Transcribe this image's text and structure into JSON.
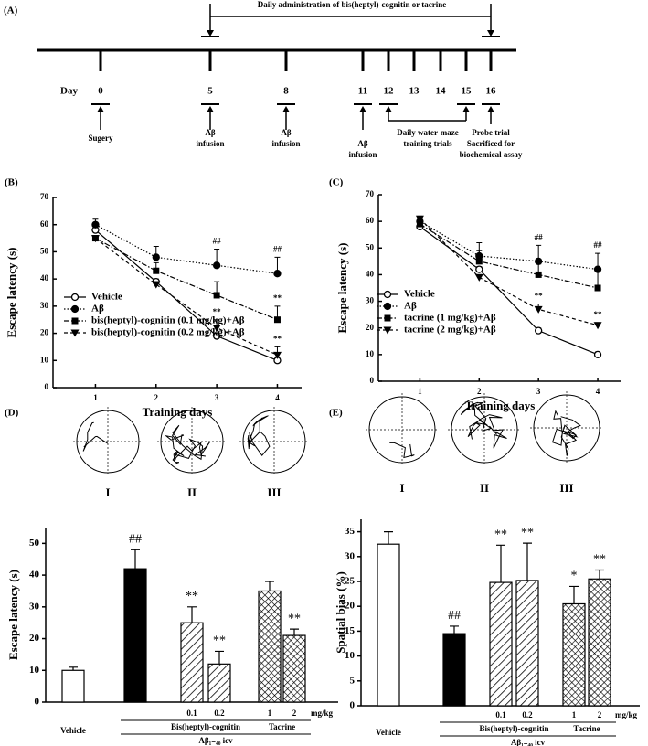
{
  "timeline": {
    "panel": "(A)",
    "admin": "Daily administration of bis(heptyl)-cognitin or tacrine",
    "day_label": "Day",
    "days": [
      "0",
      "5",
      "8",
      "11",
      "12",
      "13",
      "14",
      "15",
      "16"
    ],
    "events": [
      [
        "Sugery"
      ],
      [
        "Aβ",
        "infusion"
      ],
      [
        "Aβ",
        "infusion"
      ],
      [
        "Aβ",
        "infusion"
      ],
      [
        "Daily water-maze",
        "training trials"
      ],
      [
        "Probe trial",
        "Sacrificed for",
        "biochemical assay"
      ]
    ]
  },
  "chart_data": [
    {
      "type": "line",
      "panel": "(B)",
      "x": [
        1,
        2,
        3,
        4
      ],
      "xlim": [
        0.3,
        4.4
      ],
      "xticks": [
        1,
        2,
        3,
        4
      ],
      "ylim": [
        0,
        70
      ],
      "yticks": [
        0,
        10,
        20,
        30,
        40,
        50,
        60,
        70
      ],
      "xlabel": "Training days",
      "ylabel": "Escape latency (s)",
      "legend": "lower left",
      "series": [
        {
          "name": "Vehicle",
          "color": "#000",
          "marker": "open-circle",
          "line_style": "solid",
          "values": [
            58,
            39,
            19,
            10
          ],
          "errors": [
            1,
            1,
            1,
            1
          ]
        },
        {
          "name": "Aβ",
          "color": "#000",
          "marker": "circle",
          "line_style": "dotted",
          "values": [
            60,
            48,
            45,
            42
          ],
          "errors": [
            2,
            4,
            6,
            6
          ],
          "significance": [
            null,
            null,
            "##",
            "##"
          ]
        },
        {
          "name": "bis(heptyl)-cognitin (0.1 mg/kg)+Aβ",
          "color": "#000",
          "marker": "square",
          "line_style": "dashdot",
          "values": [
            55,
            43,
            34,
            25
          ],
          "errors": [
            1,
            3,
            5,
            5
          ],
          "significance": [
            null,
            null,
            null,
            "**"
          ]
        },
        {
          "name": "bis(heptyl)-cognitin (0.2 mg/kg)+Aβ",
          "color": "#000",
          "marker": "triangle-down",
          "line_style": "dashed",
          "values": [
            55,
            38,
            22,
            12
          ],
          "errors": [
            1,
            1,
            3,
            3
          ],
          "significance": [
            null,
            null,
            "**",
            "**"
          ]
        }
      ]
    },
    {
      "type": "line",
      "panel": "(C)",
      "x": [
        1,
        2,
        3,
        4
      ],
      "xlim": [
        0.3,
        4.4
      ],
      "xticks": [
        1,
        2,
        3,
        4
      ],
      "ylim": [
        0,
        70
      ],
      "yticks": [
        0,
        10,
        20,
        30,
        40,
        50,
        60,
        70
      ],
      "xlabel": "Training days",
      "ylabel": "Escape latency (s)",
      "legend": "lower left",
      "series": [
        {
          "name": "Vehicle",
          "color": "#000",
          "marker": "open-circle",
          "line_style": "solid",
          "values": [
            58,
            42,
            19,
            10
          ],
          "errors": [
            1,
            1,
            1,
            1
          ]
        },
        {
          "name": "Aβ",
          "color": "#000",
          "marker": "circle",
          "line_style": "dotted",
          "values": [
            60,
            47,
            45,
            42
          ],
          "errors": [
            1,
            5,
            6,
            6
          ],
          "significance": [
            null,
            null,
            "##",
            "##"
          ]
        },
        {
          "name": "tacrine (1 mg/kg)+Aβ",
          "color": "#000",
          "marker": "square",
          "line_style": "dashdot",
          "values": [
            59,
            45,
            40,
            35
          ],
          "errors": [
            1,
            4,
            4,
            6
          ]
        },
        {
          "name": "tacrine (2 mg/kg)+Aβ",
          "color": "#000",
          "marker": "triangle-down",
          "line_style": "dashed",
          "values": [
            61,
            39,
            27,
            21
          ],
          "errors": [
            1,
            1,
            2,
            1
          ],
          "significance": [
            null,
            null,
            "**",
            "**"
          ]
        }
      ]
    },
    {
      "type": "bar",
      "panel": "(D)",
      "tracks": [
        "I",
        "II",
        "III"
      ],
      "categories": [
        "Vehicle",
        null,
        "0.1",
        "0.2",
        "1",
        "2"
      ],
      "values": [
        10,
        42,
        25,
        12,
        35,
        21
      ],
      "errors": [
        1,
        6,
        5,
        4,
        3,
        2
      ],
      "fills": [
        "white",
        "black",
        "hatch",
        "hatch",
        "cross",
        "cross"
      ],
      "significance": [
        null,
        "##",
        "**",
        "**",
        null,
        "**"
      ],
      "ylim": [
        0,
        55
      ],
      "yticks": [
        0,
        10,
        20,
        30,
        40,
        50
      ],
      "ylabel": "Escape latency (s)",
      "unit": "mg/kg",
      "groups": [
        {
          "name": "Bis(heptyl)-cognitin",
          "members": [
            2,
            3
          ]
        },
        {
          "name": "Tacrine",
          "members": [
            4,
            5
          ]
        }
      ],
      "treatment": "Aβ₁₋₄₀ icv"
    },
    {
      "type": "bar",
      "panel": "(E)",
      "tracks": [
        "I",
        "II",
        "III"
      ],
      "categories": [
        "Vehicle",
        null,
        "0.1",
        "0.2",
        "1",
        "2"
      ],
      "values": [
        32.5,
        14.5,
        24.8,
        25.2,
        20.5,
        25.5
      ],
      "errors": [
        2.5,
        1.5,
        7.5,
        7.5,
        3.5,
        1.8
      ],
      "fills": [
        "white",
        "black",
        "hatch",
        "hatch",
        "cross",
        "cross"
      ],
      "significance": [
        null,
        "##",
        "**",
        "**",
        "*",
        "**"
      ],
      "ylim": [
        0,
        37.5
      ],
      "yticks": [
        0,
        5,
        10,
        15,
        20,
        25,
        30,
        35
      ],
      "ylabel": "Spatial bias (%)",
      "unit": "mg/kg",
      "groups": [
        {
          "name": "Bis(heptyl)-cognitin",
          "members": [
            2,
            3
          ]
        },
        {
          "name": "Tacrine",
          "members": [
            4,
            5
          ]
        }
      ],
      "treatment": "Aβ₁₋₄₀ icv"
    }
  ]
}
